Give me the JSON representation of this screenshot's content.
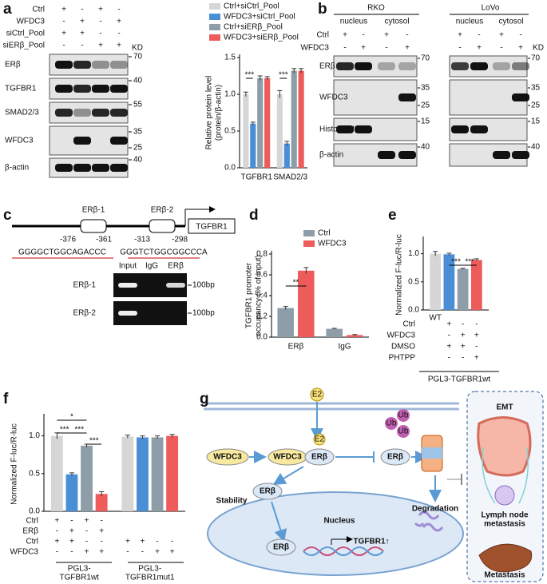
{
  "panel_labels": [
    "a",
    "b",
    "c",
    "d",
    "e",
    "f",
    "g"
  ],
  "panel_a": {
    "blot": {
      "conditions": [
        {
          "name": "Ctrl",
          "signs": [
            "+",
            "-",
            "+",
            "-"
          ]
        },
        {
          "name": "WFDC3",
          "signs": [
            "-",
            "+",
            "-",
            "+"
          ]
        },
        {
          "name": "siCtrl_Pool",
          "signs": [
            "+",
            "+",
            "-",
            "-"
          ]
        },
        {
          "name": "siERβ_Pool",
          "signs": [
            "-",
            "-",
            "+",
            "+"
          ]
        }
      ],
      "kd_label": "KD",
      "rows": [
        {
          "name": "ERβ",
          "kd": [
            "70"
          ]
        },
        {
          "name": "TGFBR1",
          "kd": [
            "40"
          ]
        },
        {
          "name": "SMAD2/3",
          "kd": [
            "55"
          ]
        },
        {
          "name": "WFDC3",
          "kd": [
            "35",
            "25"
          ]
        },
        {
          "name": "β-actin",
          "kd": [
            "40"
          ]
        }
      ]
    },
    "chart": {
      "type": "bar",
      "ylabel": [
        "Relative protein level",
        "(protein/β-actin)"
      ],
      "categories": [
        "TGFBR1",
        "SMAD2/3"
      ],
      "series": [
        {
          "name": "Ctrl+siCtrl_Pool",
          "color": "#d6d6d6",
          "values": [
            1.0,
            1.0
          ],
          "errors": [
            0.03,
            0.05
          ]
        },
        {
          "name": "WFDC3+siCtrl_Pool",
          "color": "#4a8fd6",
          "values": [
            0.6,
            0.33
          ],
          "errors": [
            0.02,
            0.03
          ]
        },
        {
          "name": "Ctrl+siERβ_Pool",
          "color": "#8d9ea8",
          "values": [
            1.22,
            1.32
          ],
          "errors": [
            0.03,
            0.03
          ]
        },
        {
          "name": "WFDC3+siERβ_Pool",
          "color": "#ee5b5b",
          "values": [
            1.22,
            1.32
          ],
          "errors": [
            0.02,
            0.03
          ]
        }
      ],
      "ylim": [
        0,
        1.5
      ],
      "yticks": [
        {
          "value": 0,
          "label": "0.0"
        },
        {
          "value": 0.5,
          "label": "0.5"
        },
        {
          "value": 1,
          "label": "1.0"
        },
        {
          "value": 1.5,
          "label": "1.5"
        }
      ],
      "annotations": [
        "***",
        "***"
      ]
    }
  },
  "panel_b": {
    "cells": [
      "RKO",
      "LoVo"
    ],
    "fractions": [
      "nucleus",
      "cytosol"
    ],
    "conditions": [
      {
        "name": "Ctrl",
        "signs": [
          "+",
          "-",
          "+",
          "-"
        ]
      },
      {
        "name": "WFDC3",
        "signs": [
          "-",
          "+",
          "-",
          "+"
        ]
      }
    ],
    "kd_label": "KD",
    "rows": [
      {
        "name": "ERβ",
        "kd": [
          "70"
        ]
      },
      {
        "name": "WFDC3",
        "kd": [
          "35",
          "25"
        ]
      },
      {
        "name": "Histone H3",
        "kd": [
          "15"
        ]
      },
      {
        "name": "β-actin",
        "kd": [
          "40"
        ]
      }
    ]
  },
  "panel_c": {
    "sites": [
      "ERβ-1",
      "ERβ-2"
    ],
    "positions": [
      "-376",
      "-361",
      "-313",
      "-298"
    ],
    "gene": "TGFBR1",
    "sequences": [
      "GGGGCTGGCAGACCC",
      "GGGTCTGGCGGCCCA"
    ],
    "lanes": [
      "Input",
      "IgG",
      "ERβ"
    ],
    "rows": [
      "ERβ-1",
      "ERβ-2"
    ],
    "marker": "100bp"
  },
  "panel_d": {
    "chart": {
      "type": "bar",
      "ylabel": [
        "TGFBR1 promoter",
        "occupancy (% of input)"
      ],
      "categories": [
        "ERβ",
        "IgG"
      ],
      "series": [
        {
          "name": "Ctrl",
          "color": "#8d9ea8",
          "values": [
            0.28,
            0.08
          ],
          "errors": [
            0.015,
            0.005
          ]
        },
        {
          "name": "WFDC3",
          "color": "#ee5b5b",
          "values": [
            0.64,
            0.02
          ],
          "errors": [
            0.03,
            0.005
          ]
        }
      ],
      "ylim": [
        0,
        0.8
      ],
      "yticks": [
        {
          "value": 0,
          "label": "0.0"
        },
        {
          "value": 0.2,
          "label": "0.2"
        },
        {
          "value": 0.4,
          "label": "0.4"
        },
        {
          "value": 0.6,
          "label": "0.6"
        },
        {
          "value": 0.8,
          "label": "0.8"
        }
      ],
      "annotations": [
        "**"
      ]
    }
  },
  "panel_e": {
    "chart": {
      "type": "bar",
      "ylabel": [
        "Normalized F-luc/R-luc"
      ],
      "series": [
        {
          "color": "#d6d6d6",
          "values": [
            1.0
          ],
          "errors": [
            0.04
          ]
        },
        {
          "color": "#4a8fd6",
          "values": [
            0.99
          ],
          "errors": [
            0.02
          ]
        },
        {
          "color": "#8d9ea8",
          "values": [
            0.73
          ],
          "errors": [
            0.01
          ]
        },
        {
          "color": "#ee5b5b",
          "values": [
            0.89
          ],
          "errors": [
            0.02
          ]
        }
      ],
      "ylim": [
        0,
        1.25
      ],
      "yticks": [
        {
          "value": 0,
          "label": "0.0"
        },
        {
          "value": 0.5,
          "label": "0.5"
        },
        {
          "value": 1,
          "label": "1.0"
        }
      ],
      "annotations": [
        "***",
        "***"
      ]
    },
    "wt_label": "WT",
    "rows": [
      {
        "name": "Ctrl",
        "signs": [
          "+",
          "-",
          "-"
        ]
      },
      {
        "name": "WFDC3",
        "signs": [
          "-",
          "+",
          "+"
        ]
      },
      {
        "name": "DMSO",
        "signs": [
          "+",
          "+",
          "-"
        ]
      },
      {
        "name": "PHTPP",
        "signs": [
          "-",
          "-",
          "+"
        ]
      }
    ],
    "construct": "PGL3-TGFBR1wt"
  },
  "panel_f": {
    "chart": {
      "type": "bar",
      "ylabel": [
        "Normalized F-luc/R-luc"
      ],
      "categories": [
        [
          "PGL3-",
          "TGFBR1wt"
        ],
        [
          "PGL3-",
          "TGFBR1mut1"
        ]
      ],
      "series": [
        {
          "color": "#d6d6d6",
          "values": [
            1.0,
            0.99
          ],
          "errors": [
            0.04,
            0.02
          ]
        },
        {
          "color": "#4a8fd6",
          "values": [
            0.49,
            0.98
          ],
          "errors": [
            0.02,
            0.02
          ]
        },
        {
          "color": "#8d9ea8",
          "values": [
            0.87,
            0.98
          ],
          "errors": [
            0.02,
            0.02
          ]
        },
        {
          "color": "#ee5b5b",
          "values": [
            0.23,
            1.0
          ],
          "errors": [
            0.03,
            0.02
          ]
        }
      ],
      "ylim": [
        0,
        1.25
      ],
      "yticks": [
        {
          "value": 0,
          "label": "0.0"
        },
        {
          "value": 0.5,
          "label": "0.5"
        },
        {
          "value": 1,
          "label": "1.0"
        }
      ],
      "annotations": [
        "*",
        "***",
        "***",
        "***"
      ]
    },
    "rows": [
      {
        "name": "Ctrl",
        "signs": [
          "+",
          "-",
          "+",
          "-"
        ]
      },
      {
        "name": "ERβ",
        "signs": [
          "-",
          "+",
          "-",
          "+"
        ]
      },
      {
        "name": "Ctrl",
        "signs": [
          "+",
          "+",
          "-",
          "-",
          "+",
          "+",
          "-",
          "-"
        ]
      },
      {
        "name": "WFDC3",
        "signs": [
          "-",
          "-",
          "+",
          "+",
          "-",
          "-",
          "+",
          "+"
        ]
      }
    ]
  },
  "panel_g": {
    "e2": "E2",
    "ub": [
      "Ub",
      "Ub",
      "Ub"
    ],
    "wfdc3": [
      "WFDC3",
      "WFDC3"
    ],
    "erb": [
      "ERβ",
      "ERβ",
      "ERβ",
      "ERβ"
    ],
    "e2_bound": "E2",
    "stability": "Stability",
    "degradation": "Degradation",
    "nucleus": "Nucleus",
    "target": "TGFBR1↑",
    "emt": "EMT",
    "lymph": [
      "Lymph node",
      "metastasis"
    ],
    "metastasis": "Metastasis"
  }
}
